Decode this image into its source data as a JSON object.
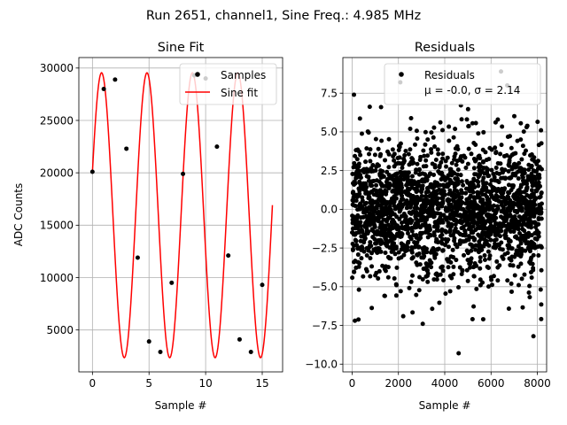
{
  "figure": {
    "suptitle": "Run 2651, channel1, Sine Freq.: 4.985 MHz"
  },
  "chart_data": [
    {
      "type": "scatter+line",
      "title": "Sine Fit",
      "xlabel": "Sample #",
      "ylabel": "ADC Counts",
      "xlim": [
        -1.2,
        16.8
      ],
      "ylim": [
        1000,
        31000
      ],
      "xticks": [
        0,
        5,
        10,
        15
      ],
      "yticks": [
        5000,
        10000,
        15000,
        20000,
        25000,
        30000
      ],
      "grid": true,
      "legend_position": "top-right",
      "legend": [
        "Samples",
        "Sine fit"
      ],
      "samples": {
        "name": "Samples",
        "color": "#000000",
        "x": [
          0,
          1,
          2,
          3,
          4,
          5,
          6,
          7,
          8,
          9,
          10,
          11,
          12,
          13,
          14,
          15
        ],
        "y": [
          20100,
          28000,
          28900,
          22300,
          11900,
          3900,
          2900,
          9500,
          19900,
          29300,
          29000,
          22500,
          12100,
          4100,
          2900,
          9300
        ]
      },
      "fit": {
        "name": "Sine fit",
        "color": "#ff0000",
        "model": "y = offset + amplitude * sin(omega * x + phase)",
        "offset": 15950,
        "amplitude": 13600,
        "omega": 1.5658,
        "phase": 0.3074,
        "x_range": [
          0,
          15.9
        ]
      }
    },
    {
      "type": "scatter",
      "title": "Residuals",
      "xlabel": "Sample #",
      "ylabel": "",
      "xlim": [
        -400,
        8400
      ],
      "ylim": [
        -10.5,
        9.8
      ],
      "xticks": [
        0,
        2000,
        4000,
        6000,
        8000
      ],
      "yticks": [
        -10.0,
        -7.5,
        -5.0,
        -2.5,
        0.0,
        2.5,
        5.0,
        7.5
      ],
      "grid": true,
      "legend_position": "top-right",
      "legend": [
        "Residuals"
      ],
      "legend_stats": "μ = -0.0, σ = 2.14",
      "series": {
        "name": "Residuals",
        "color": "#000000",
        "n_points": 8192,
        "mean": -0.0,
        "std": 2.14,
        "x_range": [
          0,
          8191
        ],
        "outliers": [
          {
            "x": 80,
            "y": 7.4
          },
          {
            "x": 2080,
            "y": 8.2
          },
          {
            "x": 6430,
            "y": 8.9
          },
          {
            "x": 6700,
            "y": 8.0
          },
          {
            "x": 4600,
            "y": -9.3
          },
          {
            "x": 7830,
            "y": -8.2
          },
          {
            "x": 120,
            "y": -7.2
          },
          {
            "x": 3050,
            "y": -7.4
          },
          {
            "x": 1250,
            "y": 6.6
          },
          {
            "x": 5200,
            "y": -7.1
          }
        ]
      }
    }
  ]
}
